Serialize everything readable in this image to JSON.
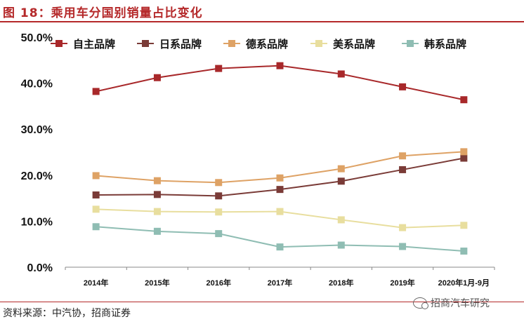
{
  "header": {
    "title": "图 18：乘用车分国别销量占比变化"
  },
  "footer": {
    "source": "资料来源：中汽协，招商证券",
    "watermark": "招商汽车研究"
  },
  "chart_data": {
    "type": "line",
    "title": "",
    "xlabel": "",
    "ylabel": "",
    "categories": [
      "2014年",
      "2015年",
      "2016年",
      "2017年",
      "2018年",
      "2019年",
      "2020年1月-9月"
    ],
    "ylim": [
      0,
      50
    ],
    "yticks": [
      "0.0%",
      "10.0%",
      "20.0%",
      "30.0%",
      "40.0%",
      "50.0%"
    ],
    "grid": false,
    "legend_position": "top",
    "series": [
      {
        "name": "自主品牌",
        "color": "#a8282a",
        "values": [
          38.2,
          41.2,
          43.2,
          43.8,
          42.0,
          39.2,
          36.4
        ]
      },
      {
        "name": "日系品牌",
        "color": "#7a3b37",
        "values": [
          15.7,
          15.8,
          15.5,
          16.9,
          18.7,
          21.2,
          23.7
        ]
      },
      {
        "name": "德系品牌",
        "color": "#dea265",
        "values": [
          19.9,
          18.8,
          18.4,
          19.4,
          21.4,
          24.2,
          25.1
        ]
      },
      {
        "name": "美系品牌",
        "color": "#e8de9e",
        "values": [
          12.6,
          12.1,
          12.0,
          12.1,
          10.3,
          8.6,
          9.1
        ]
      },
      {
        "name": "韩系品牌",
        "color": "#8fbdb3",
        "values": [
          8.8,
          7.8,
          7.3,
          4.4,
          4.8,
          4.5,
          3.5
        ]
      }
    ]
  }
}
